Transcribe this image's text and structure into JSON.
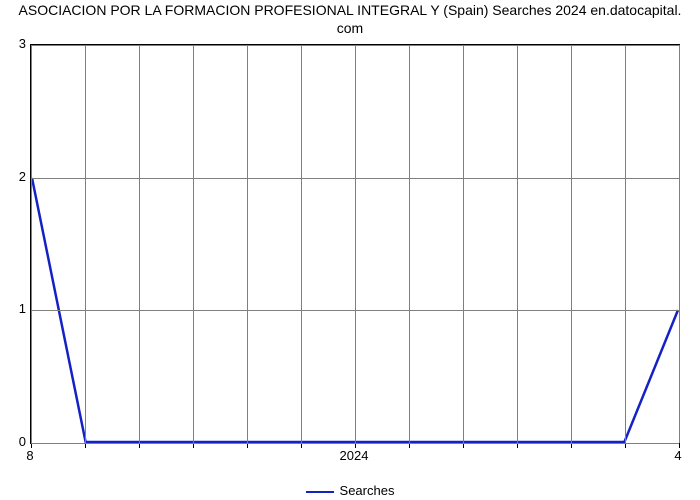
{
  "chart": {
    "type": "line",
    "title_line1": "ASOCIACION POR LA FORMACION PROFESIONAL INTEGRAL Y (Spain) Searches 2024 en.datocapital.",
    "title_line2": "com",
    "title_fontsize": 14,
    "title_color": "#000000",
    "background_color": "#ffffff",
    "plot_border_color": "#000000",
    "grid_color": "#7f7f7f",
    "grid_width": 0.5,
    "y_axis": {
      "ticks": [
        0,
        1,
        2,
        3
      ],
      "min": 0,
      "max": 3,
      "label_fontsize": 13
    },
    "x_axis": {
      "left_label": "8",
      "right_label": "4",
      "center_label": "2024",
      "label_fontsize": 13,
      "n_grid": 13
    },
    "series": {
      "name": "Searches",
      "color": "#1421c5",
      "line_width": 2.5,
      "points": [
        {
          "x": 0.0,
          "y": 2.0
        },
        {
          "x": 0.083,
          "y": 0.0
        },
        {
          "x": 0.167,
          "y": 0.0
        },
        {
          "x": 0.25,
          "y": 0.0
        },
        {
          "x": 0.333,
          "y": 0.0
        },
        {
          "x": 0.417,
          "y": 0.0
        },
        {
          "x": 0.5,
          "y": 0.0
        },
        {
          "x": 0.583,
          "y": 0.0
        },
        {
          "x": 0.667,
          "y": 0.0
        },
        {
          "x": 0.75,
          "y": 0.0
        },
        {
          "x": 0.833,
          "y": 0.0
        },
        {
          "x": 0.917,
          "y": 0.0
        },
        {
          "x": 1.0,
          "y": 1.0
        }
      ]
    },
    "legend": {
      "label": "Searches",
      "fontsize": 13
    }
  }
}
